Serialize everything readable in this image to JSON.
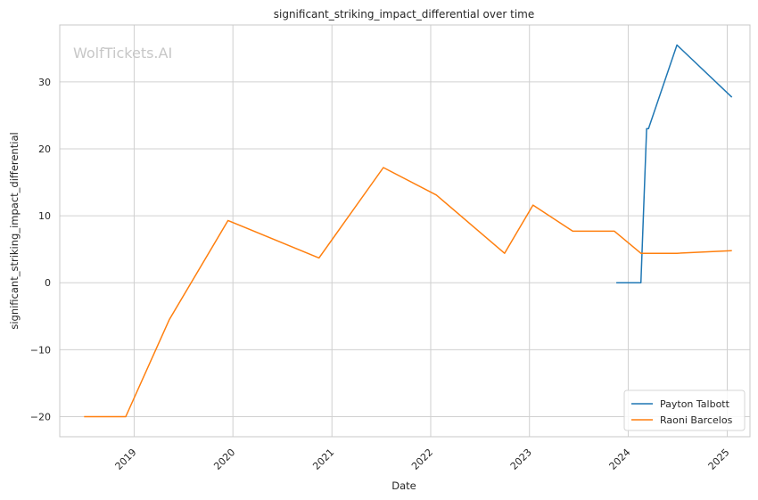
{
  "chart_data": {
    "type": "line",
    "title": "significant_striking_impact_differential over time",
    "xlabel": "Date",
    "ylabel": "significant_striking_impact_differential",
    "watermark": "WolfTickets.AI",
    "x_ticks": [
      "2019",
      "2020",
      "2021",
      "2022",
      "2023",
      "2024",
      "2025"
    ],
    "y_ticks": [
      -20,
      -10,
      0,
      10,
      20,
      30
    ],
    "xlim": [
      "2018-04-01",
      "2025-03-26"
    ],
    "ylim": [
      -23,
      38.5
    ],
    "grid": true,
    "legend_position": "bottom-right",
    "series": [
      {
        "name": "Payton Talbott",
        "color": "#1f77b4",
        "points": [
          [
            "2023-11-18",
            0
          ],
          [
            "2024-02-17",
            0
          ],
          [
            "2024-03-09",
            23
          ],
          [
            "2024-03-16",
            23
          ],
          [
            "2024-06-29",
            35.5
          ],
          [
            "2025-01-18",
            27.7
          ]
        ]
      },
      {
        "name": "Raoni Barcelos",
        "color": "#ff7f0e",
        "points": [
          [
            "2018-06-30",
            -20
          ],
          [
            "2018-12-01",
            -20
          ],
          [
            "2019-05-11",
            -5.5
          ],
          [
            "2019-12-14",
            9.3
          ],
          [
            "2020-11-14",
            3.7
          ],
          [
            "2021-07-10",
            17.2
          ],
          [
            "2022-01-22",
            13.1
          ],
          [
            "2022-10-01",
            4.4
          ],
          [
            "2023-01-14",
            11.6
          ],
          [
            "2023-06-10",
            7.7
          ],
          [
            "2023-11-11",
            7.7
          ],
          [
            "2024-02-17",
            4.4
          ],
          [
            "2024-06-29",
            4.4
          ],
          [
            "2025-01-18",
            4.8
          ]
        ]
      }
    ]
  }
}
